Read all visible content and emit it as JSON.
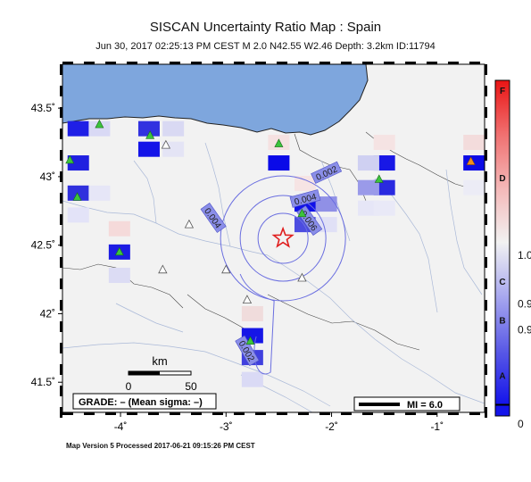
{
  "title": "SISCAN Uncertainty Ratio Map : Spain",
  "subtitle": "Jun 30, 2017 02:25:13 PM CEST   M 2.0   N42.55 W2.46   Depth: 3.2km   ID:11794",
  "map": {
    "lon_range": [
      -4.55,
      -0.55
    ],
    "lat_range": [
      41.28,
      43.82
    ],
    "lon_ticks": [
      {
        "v": -4,
        "label": "-4˚"
      },
      {
        "v": -3,
        "label": "-3˚"
      },
      {
        "v": -2,
        "label": "-2˚"
      },
      {
        "v": -1,
        "label": "-1˚"
      }
    ],
    "lat_ticks": [
      {
        "v": 43.5,
        "label": "43.5˚"
      },
      {
        "v": 43,
        "label": "43˚"
      },
      {
        "v": 42.5,
        "label": "42.5˚"
      },
      {
        "v": 42,
        "label": "42˚"
      },
      {
        "v": 41.5,
        "label": "41.5˚"
      }
    ],
    "sea_color": "#7ea6dd",
    "land_color": "#f2f2f2",
    "epicenter": {
      "lon": -2.46,
      "lat": 42.55
    },
    "contours": [
      {
        "label": "0.002",
        "label_lon": -2.05,
        "label_lat": 43.03
      },
      {
        "label": "0.004",
        "label_lon": -3.12,
        "label_lat": 42.7
      },
      {
        "label": "0.004",
        "label_lon": -2.25,
        "label_lat": 42.84
      },
      {
        "label": "0.006",
        "label_lon": -2.21,
        "label_lat": 42.68
      },
      {
        "label": "0.002",
        "label_lon": -2.8,
        "label_lat": 41.73
      }
    ],
    "cells": [
      {
        "lon": -4.4,
        "lat": 43.35,
        "color": "#1f1fe6"
      },
      {
        "lon": -4.2,
        "lat": 43.35,
        "color": "#d9d9f5"
      },
      {
        "lon": -4.4,
        "lat": 43.1,
        "color": "#2020e0"
      },
      {
        "lon": -4.4,
        "lat": 42.88,
        "color": "#3030dd"
      },
      {
        "lon": -4.2,
        "lat": 42.88,
        "color": "#e6e6f7"
      },
      {
        "lon": -4.4,
        "lat": 42.72,
        "color": "#e3e3f8"
      },
      {
        "lon": -3.73,
        "lat": 43.35,
        "color": "#3131e0"
      },
      {
        "lon": -3.73,
        "lat": 43.2,
        "color": "#1414e8"
      },
      {
        "lon": -3.5,
        "lat": 43.35,
        "color": "#d9d9f3"
      },
      {
        "lon": -3.5,
        "lat": 43.2,
        "color": "#e4e4f5"
      },
      {
        "lon": -4.01,
        "lat": 42.62,
        "color": "#f5dada"
      },
      {
        "lon": -4.01,
        "lat": 42.45,
        "color": "#1c1ce3"
      },
      {
        "lon": -4.01,
        "lat": 42.28,
        "color": "#dcdcf4"
      },
      {
        "lon": -2.5,
        "lat": 43.25,
        "color": "#f5e1e1"
      },
      {
        "lon": -2.5,
        "lat": 43.1,
        "color": "#0a0ae8"
      },
      {
        "lon": -2.25,
        "lat": 42.95,
        "color": "#f6e4e4"
      },
      {
        "lon": -2.25,
        "lat": 42.8,
        "color": "#1010ea"
      },
      {
        "lon": -2.25,
        "lat": 42.65,
        "color": "#4c4ce0"
      },
      {
        "lon": -2.05,
        "lat": 42.8,
        "color": "#9090e6"
      },
      {
        "lon": -2.05,
        "lat": 42.65,
        "color": "#e0e0f6"
      },
      {
        "lon": -1.5,
        "lat": 43.1,
        "color": "#1818e6"
      },
      {
        "lon": -1.5,
        "lat": 42.92,
        "color": "#2a2ae0"
      },
      {
        "lon": -1.65,
        "lat": 43.1,
        "color": "#cfd0f2"
      },
      {
        "lon": -1.65,
        "lat": 42.92,
        "color": "#9a9ae9"
      },
      {
        "lon": -1.65,
        "lat": 42.77,
        "color": "#e6e6f7"
      },
      {
        "lon": -1.5,
        "lat": 42.77,
        "color": "#e9e9f7"
      },
      {
        "lon": -1.5,
        "lat": 43.25,
        "color": "#f5e3e3"
      },
      {
        "lon": -0.65,
        "lat": 43.1,
        "color": "#0c0ce6"
      },
      {
        "lon": -0.65,
        "lat": 43.25,
        "color": "#f3dcdc"
      },
      {
        "lon": -0.65,
        "lat": 42.92,
        "color": "#ececf6"
      },
      {
        "lon": -2.75,
        "lat": 42.0,
        "color": "#f0dcdc"
      },
      {
        "lon": -2.75,
        "lat": 41.84,
        "color": "#1616e6"
      },
      {
        "lon": -2.75,
        "lat": 41.68,
        "color": "#4040de"
      },
      {
        "lon": -2.75,
        "lat": 41.52,
        "color": "#dadaf5"
      }
    ],
    "stations_green": [
      {
        "lon": -4.2,
        "lat": 43.38
      },
      {
        "lon": -4.48,
        "lat": 43.12
      },
      {
        "lon": -4.41,
        "lat": 42.85
      },
      {
        "lon": -3.72,
        "lat": 43.3
      },
      {
        "lon": -4.01,
        "lat": 42.45
      },
      {
        "lon": -2.5,
        "lat": 43.24
      },
      {
        "lon": -2.28,
        "lat": 42.73
      },
      {
        "lon": -1.55,
        "lat": 42.98
      },
      {
        "lon": -2.77,
        "lat": 41.8
      }
    ],
    "stations_orange": [
      {
        "lon": -0.68,
        "lat": 43.11
      }
    ],
    "stations_open": [
      {
        "lon": -3.57,
        "lat": 43.23
      },
      {
        "lon": -3.6,
        "lat": 42.32
      },
      {
        "lon": -3.35,
        "lat": 42.65
      },
      {
        "lon": -3.0,
        "lat": 42.32
      },
      {
        "lon": -2.28,
        "lat": 42.26
      },
      {
        "lon": -2.8,
        "lat": 42.1
      }
    ],
    "scale_bar": {
      "unit": "km",
      "labels": [
        "0",
        "50"
      ]
    },
    "grade_text": "GRADE: – (Mean sigma: –)",
    "mi_text": "MI = 6.0"
  },
  "colorbar": {
    "stops": [
      "#1414ea",
      "#5a5ae6",
      "#a8a8ef",
      "#f2f2f2",
      "#f4b8b8",
      "#f07070",
      "#ea1414"
    ],
    "labels": [
      {
        "t": "F",
        "frac": 0.97
      },
      {
        "t": "D",
        "frac": 0.7
      },
      {
        "t": "1.0",
        "frac": 0.46
      },
      {
        "t": "C",
        "frac": 0.38
      },
      {
        "t": "0.9",
        "frac": 0.31
      },
      {
        "t": "B",
        "frac": 0.26
      },
      {
        "t": "0.9",
        "frac": 0.23
      },
      {
        "t": "A",
        "frac": 0.09
      },
      {
        "t": "0",
        "frac": -0.06
      }
    ]
  },
  "footer": "Map Version 5 Processed 2017-06-21 09:15:26 PM CEST"
}
